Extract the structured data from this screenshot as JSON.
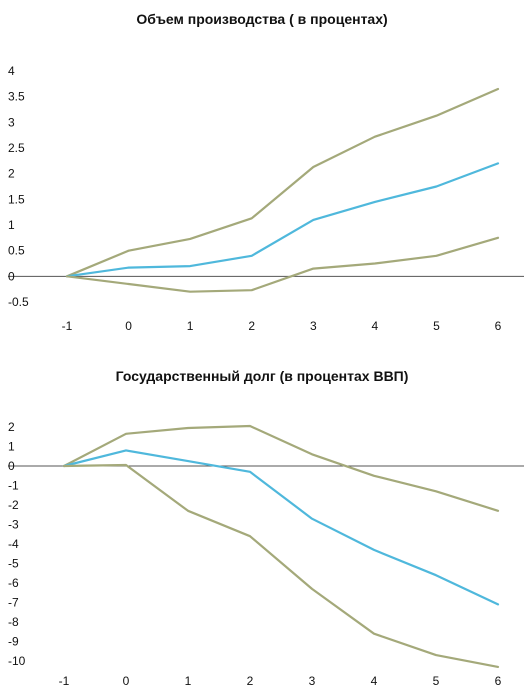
{
  "chart_data": [
    {
      "type": "line",
      "title": "Объем  производства ( в  процентах)",
      "x": [
        -1,
        0,
        1,
        2,
        3,
        4,
        5,
        6
      ],
      "x_tick_labels": [
        "-1",
        "0",
        "1",
        "2",
        "3",
        "4",
        "5",
        "6"
      ],
      "y_tick_labels": [
        "4",
        "3.5",
        "3",
        "2.5",
        "2",
        "1.5",
        "1",
        "0.5",
        "0",
        "-0.5"
      ],
      "y_ticks": [
        4,
        3.5,
        3,
        2.5,
        2,
        1.5,
        1,
        0.5,
        0,
        -0.5
      ],
      "ylim": [
        -0.5,
        4
      ],
      "grid": false,
      "zero_line": true,
      "series": [
        {
          "role": "upper",
          "color": "#a4a97a",
          "values": [
            0,
            0.5,
            0.73,
            1.13,
            2.13,
            2.72,
            3.13,
            3.65
          ]
        },
        {
          "role": "central",
          "color": "#4fb8dc",
          "values": [
            0,
            0.17,
            0.2,
            0.4,
            1.1,
            1.45,
            1.75,
            2.2
          ]
        },
        {
          "role": "lower",
          "color": "#a4a97a",
          "values": [
            0,
            -0.15,
            -0.3,
            -0.27,
            0.15,
            0.25,
            0.4,
            0.75
          ]
        }
      ]
    },
    {
      "type": "line",
      "title": "Государственный долг (в процентах ВВП)",
      "x": [
        -1,
        0,
        1,
        2,
        3,
        4,
        5,
        6
      ],
      "x_tick_labels": [
        "-1",
        "0",
        "1",
        "2",
        "3",
        "4",
        "5",
        "6"
      ],
      "y_tick_labels": [
        "2",
        "1",
        "0",
        "-1",
        "-2",
        "-3",
        "-4",
        "-5",
        "-6",
        "-7",
        "-8",
        "-9",
        "-10"
      ],
      "y_ticks": [
        2,
        1,
        0,
        -1,
        -2,
        -3,
        -4,
        -5,
        -6,
        -7,
        -8,
        -9,
        -10
      ],
      "ylim": [
        -10,
        2
      ],
      "grid": false,
      "zero_line": true,
      "series": [
        {
          "role": "upper",
          "color": "#a4a97a",
          "values": [
            0,
            1.65,
            1.95,
            2.05,
            0.6,
            -0.5,
            -1.3,
            -2.3
          ]
        },
        {
          "role": "central",
          "color": "#4fb8dc",
          "values": [
            0,
            0.8,
            0.25,
            -0.3,
            -2.7,
            -4.3,
            -5.6,
            -7.1
          ]
        },
        {
          "role": "lower",
          "color": "#a4a97a",
          "values": [
            0,
            0.05,
            -2.3,
            -3.6,
            -6.3,
            -8.6,
            -9.7,
            -10.3
          ]
        }
      ]
    }
  ]
}
